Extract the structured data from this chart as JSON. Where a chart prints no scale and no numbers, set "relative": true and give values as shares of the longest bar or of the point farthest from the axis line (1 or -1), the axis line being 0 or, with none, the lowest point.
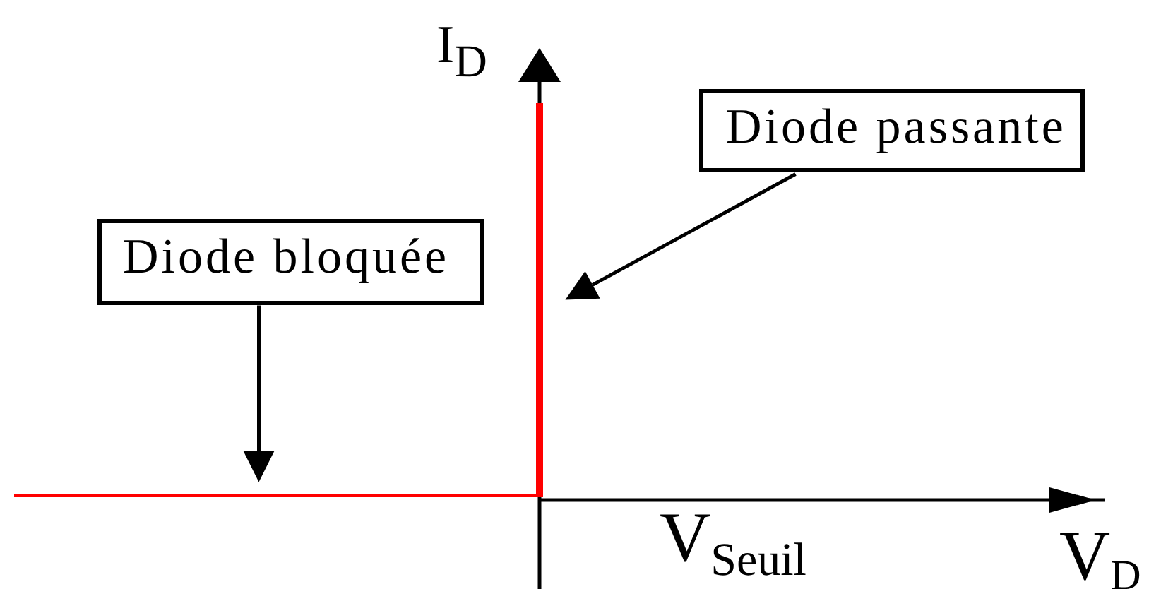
{
  "chart_data": {
    "type": "step",
    "categories": [
      null,
      null
    ],
    "values": [
      0,
      1
    ],
    "color": "#ff0000",
    "relative": true,
    "xlabel": "V$_{D}$",
    "ylabel": "I$_{D}$",
    "annotations": [
      "Diode passante",
      "Diode bloquée",
      "V$_{Seuil}$"
    ],
    "marker": "none",
    "line_style": "solid"
  }
}
